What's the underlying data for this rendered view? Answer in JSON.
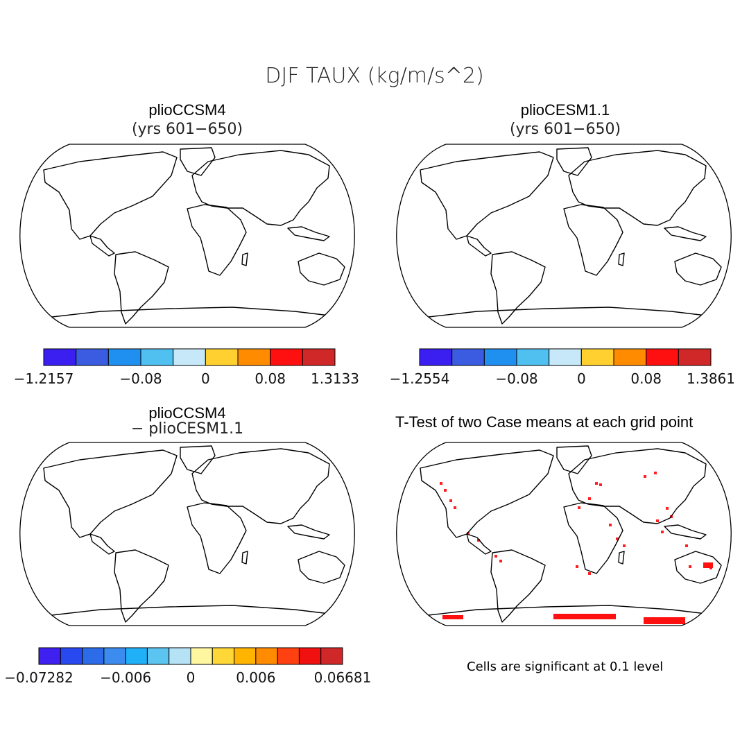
{
  "title": "DJF TAUX (kg/m/s^2)",
  "panels": [
    {
      "id": "p1",
      "title": "plioCCSM4",
      "subtitle": "(yrs 601−650)",
      "scheme": "mean",
      "colorbar": {
        "colors": [
          "#3a1ff0",
          "#3b5ce0",
          "#1f8ff0",
          "#4fc0f0",
          "#c6e8f8",
          "#ffd030",
          "#ff8c00",
          "#ff1010",
          "#d02828"
        ],
        "labels": [
          "−1.2157",
          "−0.08",
          "0",
          "0.08",
          "1.3133"
        ],
        "label_positions": [
          0,
          3,
          5,
          7,
          9
        ]
      }
    },
    {
      "id": "p2",
      "title": "plioCESM1.1",
      "subtitle": "(yrs 601−650)",
      "scheme": "mean",
      "colorbar": {
        "colors": [
          "#3a1ff0",
          "#3b5ce0",
          "#1f8ff0",
          "#4fc0f0",
          "#c6e8f8",
          "#ffd030",
          "#ff8c00",
          "#ff1010",
          "#d02828"
        ],
        "labels": [
          "−1.2554",
          "−0.08",
          "0",
          "0.08",
          "1.3861"
        ],
        "label_positions": [
          0,
          3,
          5,
          7,
          9
        ]
      }
    },
    {
      "id": "p3",
      "title": "plioCCSM4",
      "subtitle": "− plioCESM1.1",
      "scheme": "diff",
      "colorbar": {
        "colors": [
          "#4020f0",
          "#2848f0",
          "#2c6ce8",
          "#3c8cf0",
          "#1fb0f8",
          "#5cc4f0",
          "#b6e2f6",
          "#fff6a0",
          "#ffd838",
          "#ffb400",
          "#ff8c00",
          "#ff4010",
          "#f01010",
          "#d02828"
        ],
        "labels": [
          "−0.07282",
          "−0.006",
          "0",
          "0.006",
          "0.06681"
        ],
        "label_positions": [
          0,
          4,
          7,
          10,
          14
        ]
      }
    },
    {
      "id": "p4",
      "title": "T-Test of two Case means at each grid point",
      "scheme": "ttest",
      "note": "Cells are significant at 0.1 level"
    }
  ]
}
